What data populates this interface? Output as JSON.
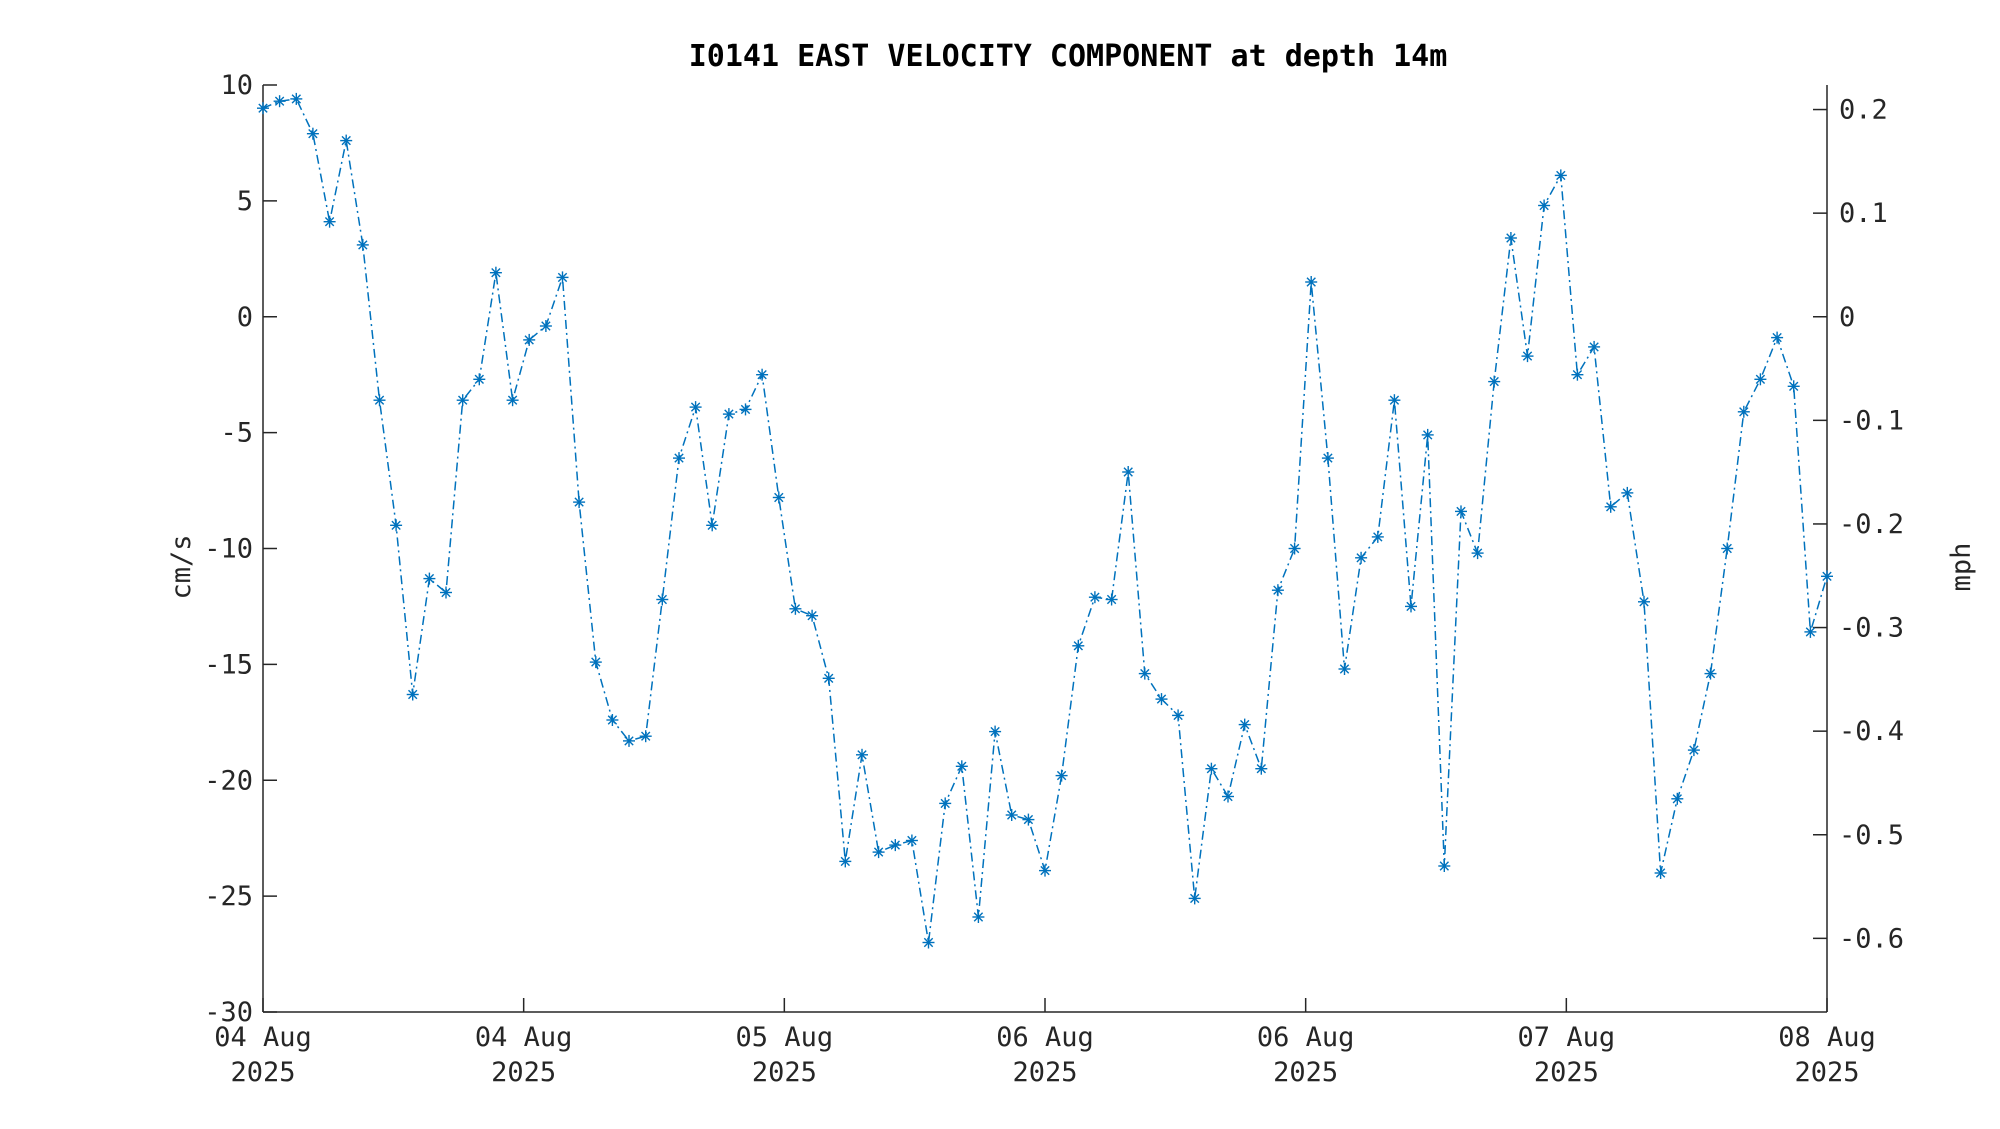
{
  "chart_data": {
    "type": "line",
    "title": "I0141 EAST VELOCITY COMPONENT at depth 14m",
    "ylabel": "cm/s",
    "ylabel_right": "mph",
    "ylim": [
      -30,
      10
    ],
    "y_ticks": [
      "10",
      "5",
      "0",
      "-5",
      "-10",
      "-15",
      "-20",
      "-25",
      "-30"
    ],
    "y_ticks_right": [
      "0.2",
      "0.1",
      "0",
      "-0.1",
      "-0.2",
      "-0.3",
      "-0.4",
      "-0.5",
      "-0.6"
    ],
    "x_ticks": [
      {
        "date": "04 Aug",
        "year": "2025"
      },
      {
        "date": "04 Aug",
        "year": "2025"
      },
      {
        "date": "05 Aug",
        "year": "2025"
      },
      {
        "date": "06 Aug",
        "year": "2025"
      },
      {
        "date": "06 Aug",
        "year": "2025"
      },
      {
        "date": "07 Aug",
        "year": "2025"
      },
      {
        "date": "08 Aug",
        "year": "2025"
      }
    ],
    "grid": false,
    "line_style": "dash-dot",
    "marker": "asterisk",
    "color": "#0072bd",
    "series": [
      {
        "values": [
          9.0,
          9.3,
          9.4,
          7.9,
          4.1,
          7.6,
          3.1,
          -3.6,
          -9.0,
          -16.3,
          -11.3,
          -11.9,
          -3.6,
          -2.7,
          1.9,
          -3.6,
          -1.0,
          -0.4,
          1.7,
          -8.0,
          -14.9,
          -17.4,
          -18.3,
          -18.1,
          -12.2,
          -6.1,
          -3.9,
          -9.0,
          -4.2,
          -4.0,
          -2.5,
          -7.8,
          -12.6,
          -12.9,
          -15.6,
          -23.5,
          -18.9,
          -23.1,
          -22.8,
          -22.6,
          -27.0,
          -21.0,
          -19.4,
          -25.9,
          -17.9,
          -21.5,
          -21.7,
          -23.9,
          -19.8,
          -14.2,
          -12.1,
          -12.2,
          -6.7,
          -15.4,
          -16.5,
          -17.2,
          -25.1,
          -19.5,
          -20.7,
          -17.6,
          -19.5,
          -11.8,
          -10.0,
          1.5,
          -6.1,
          -15.2,
          -10.4,
          -9.5,
          -3.6,
          -12.5,
          -5.1,
          -23.7,
          -8.4,
          -10.2,
          -2.8,
          3.4,
          -1.7,
          4.8,
          6.1,
          -2.5,
          -1.3,
          -8.2,
          -7.6,
          -12.3,
          -24.0,
          -20.8,
          -18.7,
          -15.4,
          -10.0,
          -4.1,
          -2.7,
          -0.9,
          -3.0,
          -13.6,
          -11.2
        ]
      }
    ]
  }
}
